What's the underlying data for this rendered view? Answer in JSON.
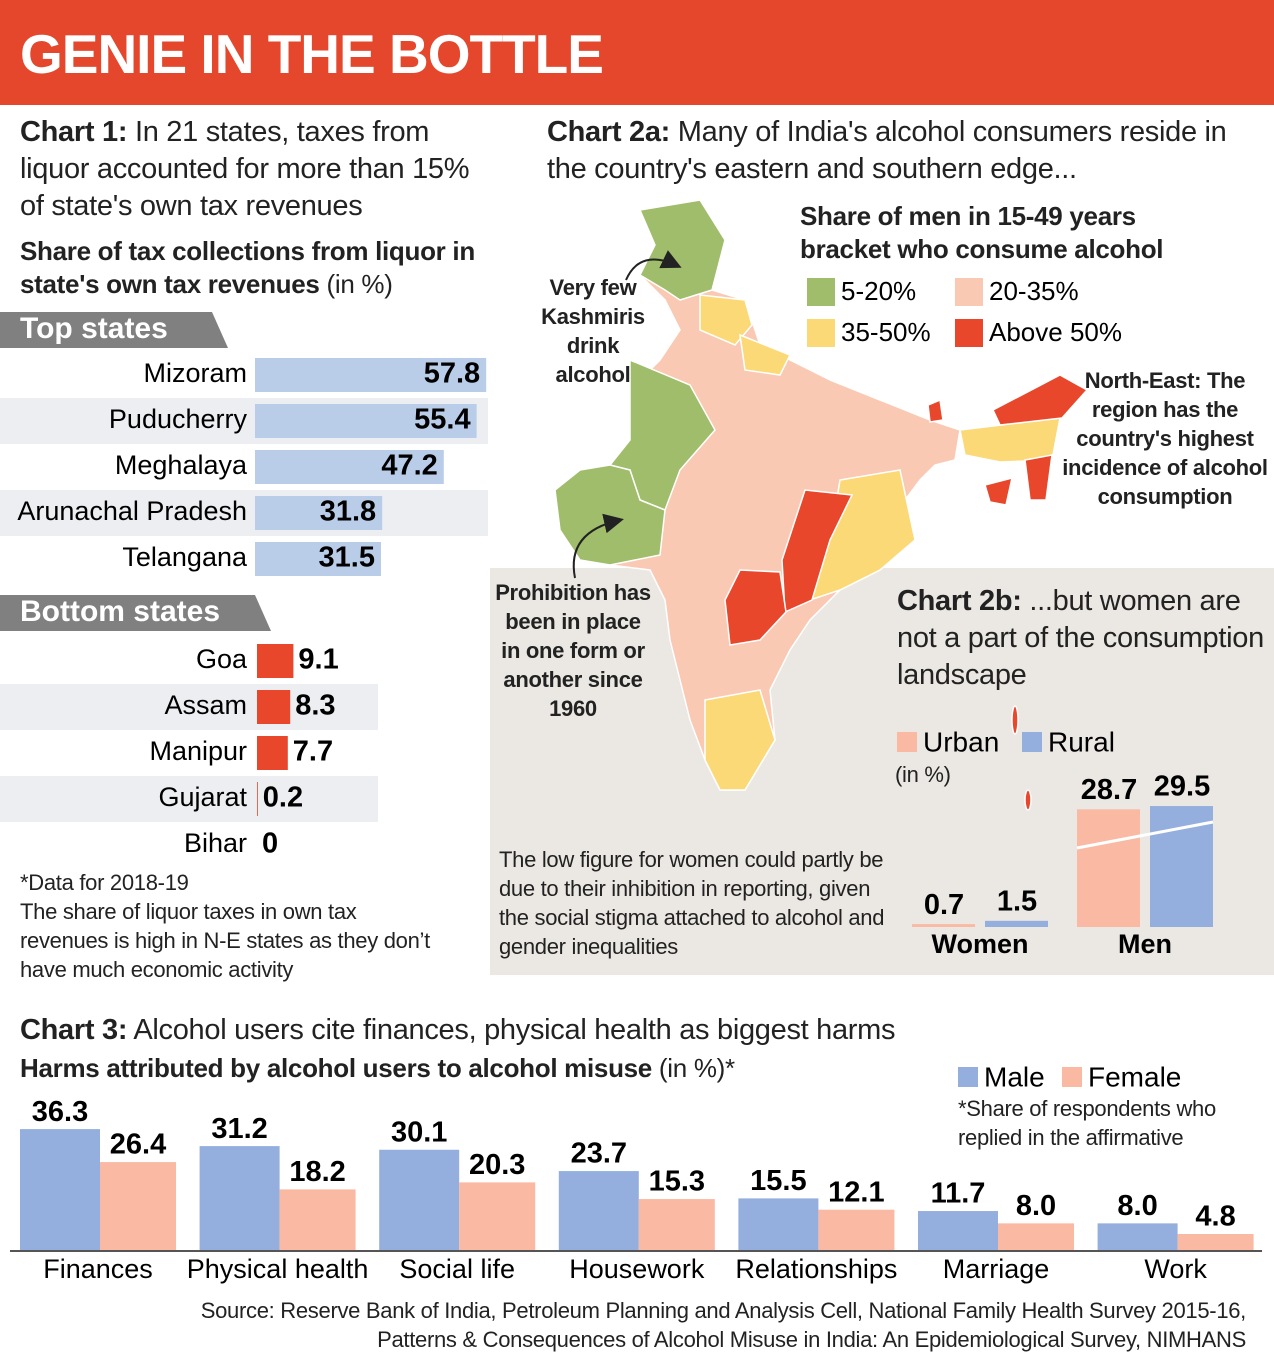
{
  "title": "GENIE IN THE BOTTLE",
  "chart_data": [
    {
      "type": "bar",
      "orientation": "horizontal",
      "label": "Chart 1:",
      "title": "In 21 states, taxes from liquor accounted for more than 15% of state's own tax revenues",
      "subtitle": "Share of tax collections from liquor in state's own tax revenues",
      "unit": "(in %)",
      "groups": [
        {
          "name": "Top states",
          "color": "#b9cde9",
          "categories": [
            "Mizoram",
            "Puducherry",
            "Meghalaya",
            "Arunachal Pradesh",
            "Telangana"
          ],
          "values": [
            57.8,
            55.4,
            47.2,
            31.8,
            31.5
          ]
        },
        {
          "name": "Bottom states",
          "color": "#e8472b",
          "categories": [
            "Goa",
            "Assam",
            "Manipur",
            "Gujarat",
            "Bihar"
          ],
          "values": [
            9.1,
            8.3,
            7.7,
            0.2,
            0
          ]
        }
      ],
      "notes": [
        "*Data for 2018-19",
        "The share of liquor taxes in own tax revenues is high in N-E states as they don’t have much economic activity"
      ]
    },
    {
      "type": "grouped_bar",
      "label": "Chart 2b:",
      "title": "...but women are not a part of the consumption landscape",
      "unit": "(in %)",
      "categories": [
        "Women",
        "Men"
      ],
      "series": [
        {
          "name": "Urban",
          "color": "#f9b9a3",
          "values": [
            0.7,
            28.7
          ]
        },
        {
          "name": "Rural",
          "color": "#94afdd",
          "values": [
            1.5,
            29.5
          ]
        }
      ],
      "note": "The low figure for women could partly be due to their inhibition in reporting, given the social stigma attached to alcohol and gender inequalities"
    },
    {
      "type": "grouped_bar",
      "label": "Chart 3:",
      "title": "Alcohol users cite finances, physical health as biggest harms",
      "subtitle": "Harms attributed by alcohol users to alcohol misuse",
      "unit": "(in %)*",
      "categories": [
        "Finances",
        "Physical health",
        "Social life",
        "Housework",
        "Relationships",
        "Marriage",
        "Work"
      ],
      "series": [
        {
          "name": "Male",
          "color": "#94afdd",
          "values": [
            36.3,
            31.2,
            30.1,
            23.7,
            15.5,
            11.7,
            8.0
          ],
          "value_labels": [
            "36.3",
            "31.2",
            "30.1",
            "23.7",
            "15.5",
            "11.7",
            "8.0"
          ]
        },
        {
          "name": "Female",
          "color": "#f9b9a3",
          "values": [
            26.4,
            18.2,
            20.3,
            15.3,
            12.1,
            8.0,
            4.8
          ],
          "value_labels": [
            "26.4",
            "18.2",
            "20.3",
            "15.3",
            "12.1",
            "8.0",
            "4.8"
          ]
        }
      ],
      "note": "*Share of respondents who replied in the affirmative"
    }
  ],
  "map": {
    "label": "Chart 2a:",
    "title": "Many of India's alcohol consumers reside in the country's eastern and southern edge...",
    "legend_title": "Share of men in 15-49 years bracket who consume alcohol",
    "legend": [
      {
        "label": "5-20%",
        "color": "#9fbd6a"
      },
      {
        "label": "20-35%",
        "color": "#f9c9b4"
      },
      {
        "label": "35-50%",
        "color": "#fbd976"
      },
      {
        "label": "Above 50%",
        "color": "#e8472b"
      }
    ],
    "annotations": [
      "Very few Kashmiris drink alcohol",
      "North-East: The region has the country's highest incidence of alcohol consumption",
      "Prohibition has been in place in one form or another since 1960"
    ]
  },
  "source": [
    "Source: Reserve Bank of India, Petroleum Planning and Analysis Cell, National Family Health Survey 2015-16,",
    "Patterns & Consequences of Alcohol Misuse in India: An Epidemiological Survey, NIMHANS"
  ]
}
